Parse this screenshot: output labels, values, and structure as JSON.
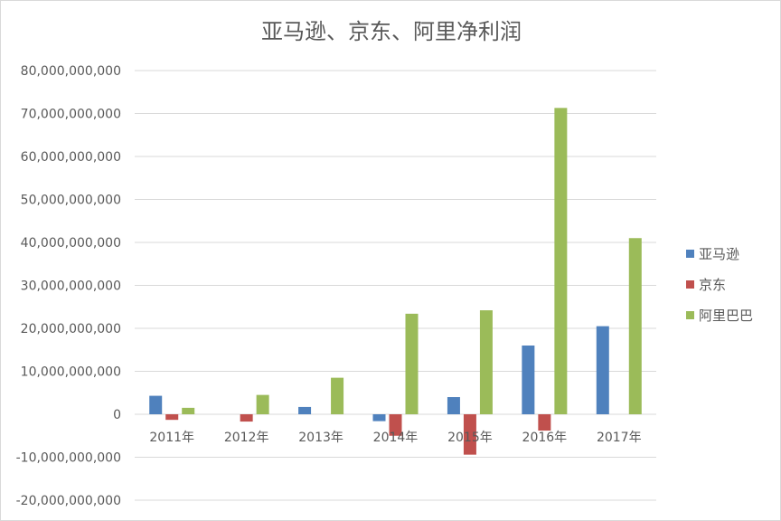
{
  "chart_data": {
    "type": "bar",
    "title": "亚马逊、京东、阿里净利润",
    "categories": [
      "2011年",
      "2012年",
      "2013年",
      "2014年",
      "2015年",
      "2016年",
      "2017年"
    ],
    "series": [
      {
        "name": "亚马逊",
        "color": "#4f81bd",
        "values": [
          4300000000,
          0,
          1700000000,
          -1600000000,
          4000000000,
          16000000000,
          20500000000
        ]
      },
      {
        "name": "京东",
        "color": "#c0504d",
        "values": [
          -1300000000,
          -1700000000,
          0,
          -5000000000,
          -9400000000,
          -3800000000,
          0
        ]
      },
      {
        "name": "阿里巴巴",
        "color": "#9bbb59",
        "values": [
          1500000000,
          4500000000,
          8500000000,
          23400000000,
          24200000000,
          71300000000,
          41000000000
        ]
      }
    ],
    "ylim": [
      -20000000000,
      80000000000
    ],
    "yticks": [
      80000000000,
      70000000000,
      60000000000,
      50000000000,
      40000000000,
      30000000000,
      20000000000,
      10000000000,
      0,
      -10000000000,
      -20000000000
    ],
    "ytick_labels": [
      "80,000,000,000",
      "70,000,000,000",
      "60,000,000,000",
      "50,000,000,000",
      "40,000,000,000",
      "30,000,000,000",
      "20,000,000,000",
      "10,000,000,000",
      "0",
      "-10,000,000,000",
      "-20,000,000,000"
    ],
    "grid": true,
    "gridline_color": "#d9d9d9",
    "legend_position": "right"
  }
}
